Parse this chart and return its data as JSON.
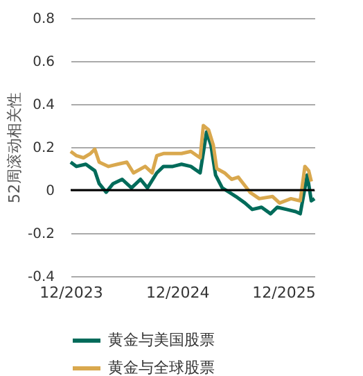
{
  "chart_data": {
    "type": "line",
    "ylabel": "52周滚动相关性",
    "xlim": [
      "2023-12-01",
      "2026-03-18"
    ],
    "xticks": [
      {
        "value": "2023-12-01",
        "label": "12/2023"
      },
      {
        "value": "2024-12-01",
        "label": "12/2024"
      },
      {
        "value": "2025-12-01",
        "label": "12/2025"
      }
    ],
    "ylim": [
      -0.4,
      0.8
    ],
    "yticks": [
      -0.4,
      -0.2,
      0,
      0.2,
      0.4,
      0.6,
      0.8
    ],
    "grid": "y",
    "legend": "bottom",
    "marker": "none",
    "line_style": "solid",
    "ref_lines": [
      {
        "axis": "y",
        "value": 0,
        "label": null,
        "color": "#000000"
      }
    ],
    "series": [
      {
        "name": "黄金与美国股票",
        "color": "#006b5a",
        "x": [
          "2023-12-01",
          "2023-12-21",
          "2024-01-22",
          "2024-02-22",
          "2024-03-08",
          "2024-04-01",
          "2024-04-25",
          "2024-05-26",
          "2024-06-27",
          "2024-07-28",
          "2024-08-21",
          "2024-09-22",
          "2024-10-15",
          "2024-11-16",
          "2024-12-16",
          "2025-01-17",
          "2025-02-18",
          "2025-03-12",
          "2025-03-27",
          "2025-04-12",
          "2025-05-05",
          "2025-05-29",
          "2025-06-21",
          "2025-07-22",
          "2025-08-16",
          "2025-09-17",
          "2025-10-18",
          "2025-11-10",
          "2025-12-12",
          "2026-01-12",
          "2026-01-28",
          "2026-02-21",
          "2026-03-07",
          "2026-03-18"
        ],
        "values": [
          0.13,
          0.11,
          0.12,
          0.09,
          0.03,
          -0.01,
          0.03,
          0.05,
          0.01,
          0.05,
          0.01,
          0.08,
          0.11,
          0.11,
          0.12,
          0.11,
          0.08,
          0.27,
          0.21,
          0.07,
          0.01,
          -0.01,
          -0.03,
          -0.06,
          -0.09,
          -0.08,
          -0.11,
          -0.08,
          -0.09,
          -0.1,
          -0.11,
          0.07,
          -0.05,
          -0.04
        ]
      },
      {
        "name": "黄金与全球股票",
        "color": "#d9a84e",
        "x": [
          "2023-12-01",
          "2023-12-21",
          "2024-01-14",
          "2024-02-07",
          "2024-02-22",
          "2024-03-08",
          "2024-04-09",
          "2024-05-10",
          "2024-06-11",
          "2024-07-04",
          "2024-08-13",
          "2024-09-06",
          "2024-09-22",
          "2024-10-15",
          "2024-11-16",
          "2024-12-16",
          "2025-01-17",
          "2025-02-18",
          "2025-03-01",
          "2025-03-19",
          "2025-04-04",
          "2025-04-16",
          "2025-05-13",
          "2025-06-06",
          "2025-06-29",
          "2025-07-22",
          "2025-08-08",
          "2025-09-09",
          "2025-10-25",
          "2025-11-18",
          "2025-12-27",
          "2026-01-28",
          "2026-02-13",
          "2026-02-26",
          "2026-03-07"
        ],
        "values": [
          0.18,
          0.16,
          0.15,
          0.17,
          0.19,
          0.13,
          0.11,
          0.12,
          0.13,
          0.08,
          0.11,
          0.08,
          0.16,
          0.17,
          0.17,
          0.17,
          0.18,
          0.15,
          0.3,
          0.28,
          0.21,
          0.1,
          0.08,
          0.05,
          0.06,
          0.02,
          -0.01,
          -0.04,
          -0.03,
          -0.06,
          -0.04,
          -0.05,
          0.11,
          0.09,
          0.04
        ]
      }
    ]
  }
}
